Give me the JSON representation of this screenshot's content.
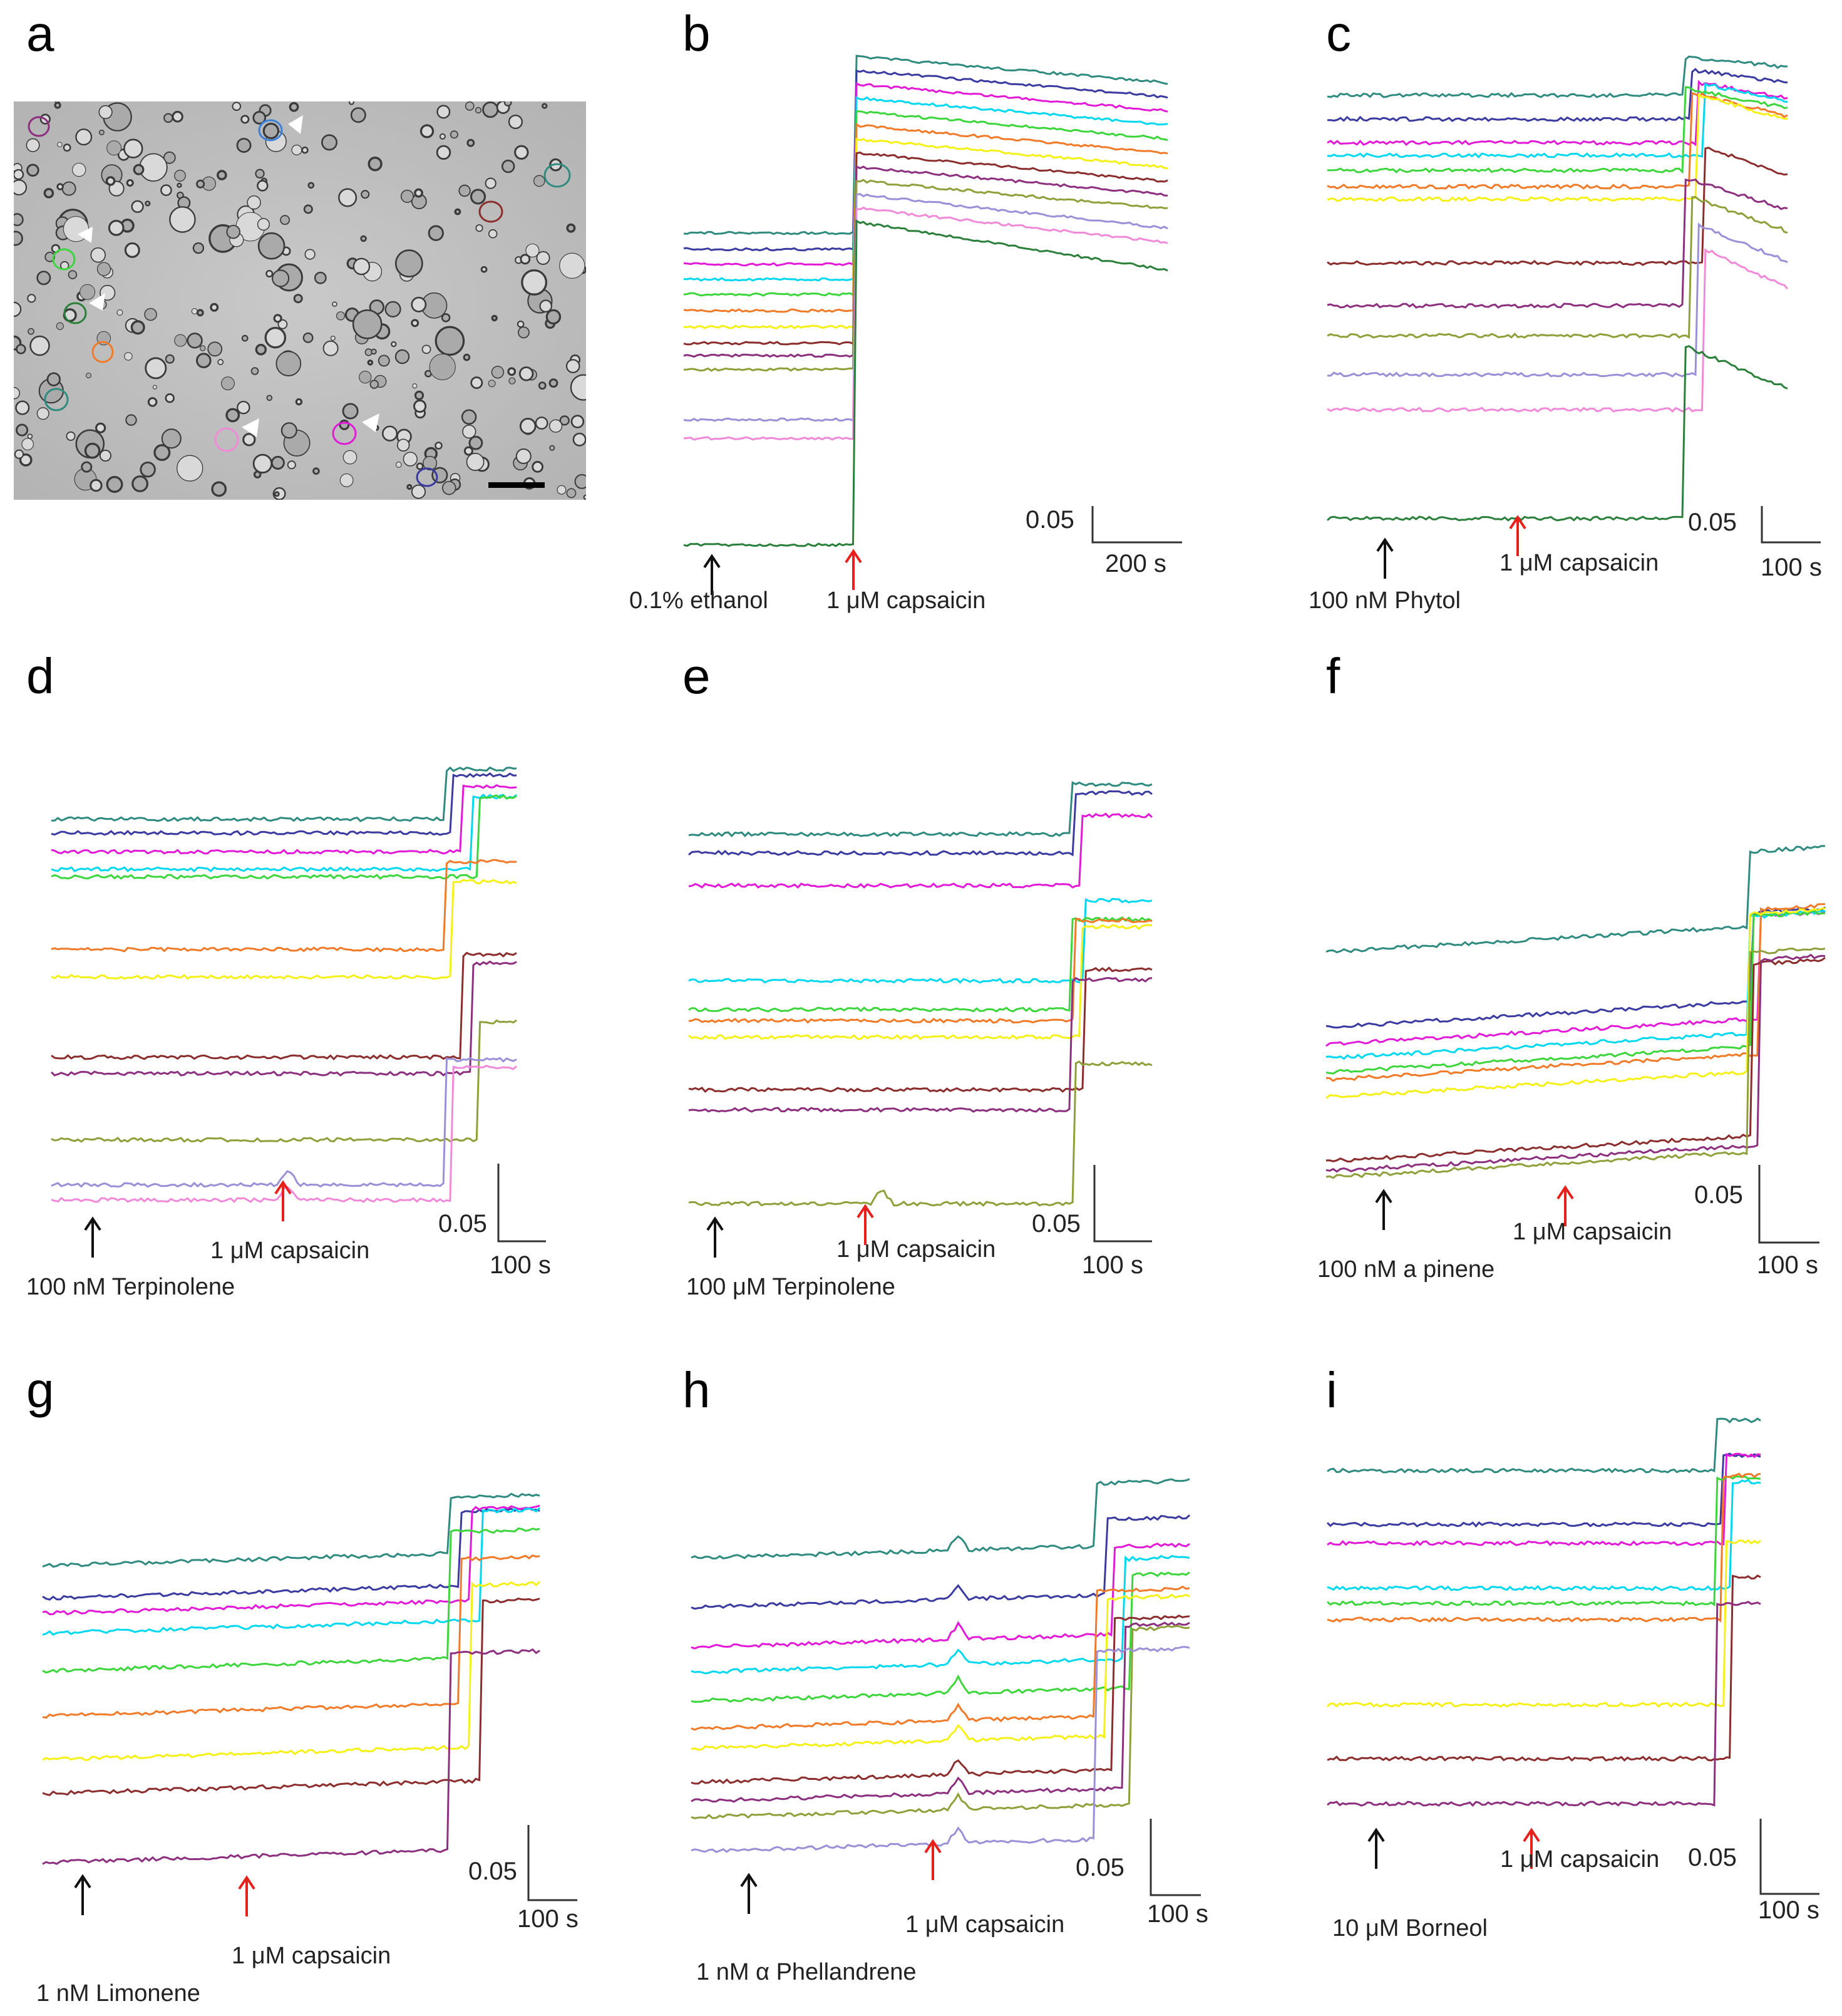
{
  "figure": {
    "panels": [
      {
        "id": "a",
        "letter": "a",
        "type": "micrograph"
      },
      {
        "id": "b",
        "letter": "b",
        "treatment": "0.1% ethanol",
        "capsaicin": "1 μM capsaicin",
        "scale_value": "0.05",
        "scale_time": "200 s"
      },
      {
        "id": "c",
        "letter": "c",
        "treatment": "100 nM Phytol",
        "capsaicin": "1 μM capsaicin",
        "scale_value": "0.05",
        "scale_time": "100 s"
      },
      {
        "id": "d",
        "letter": "d",
        "treatment": "100 nM Terpinolene",
        "capsaicin": "1 μM capsaicin",
        "scale_value": "0.05",
        "scale_time": "100 s"
      },
      {
        "id": "e",
        "letter": "e",
        "treatment": "100 μM Terpinolene",
        "capsaicin": "1 μM capsaicin",
        "scale_value": "0.05",
        "scale_time": "100 s"
      },
      {
        "id": "f",
        "letter": "f",
        "treatment": "100 nM a pinene",
        "capsaicin": "1 μM capsaicin",
        "scale_value": "0.05",
        "scale_time": "100 s"
      },
      {
        "id": "g",
        "letter": "g",
        "treatment": "1 nM Limonene",
        "capsaicin": "1 μM capsaicin",
        "scale_value": "0.05",
        "scale_time": "100 s"
      },
      {
        "id": "h",
        "letter": "h",
        "treatment": "1 nM α Phellandrene",
        "capsaicin": "1 μM capsaicin",
        "scale_value": "0.05",
        "scale_time": "100 s"
      },
      {
        "id": "i",
        "letter": "i",
        "treatment": "10 μM Borneol",
        "capsaicin": "1 μM capsaicin",
        "scale_value": "0.05",
        "scale_time": "100 s"
      }
    ]
  },
  "colors": {
    "black_arrow": "#111111",
    "red_arrow": "#e8201c",
    "trace_palette": [
      "#2f8b7f",
      "#3a3aa0",
      "#e21ad8",
      "#00d8f0",
      "#3cd63c",
      "#f07a28",
      "#f5f015",
      "#8b2d2d",
      "#8d2f7f",
      "#8fa03a",
      "#9a90d8",
      "#f08ad8",
      "#2a7f3a",
      "#3a7fd8",
      "#8f4f8f",
      "#555555"
    ]
  }
}
